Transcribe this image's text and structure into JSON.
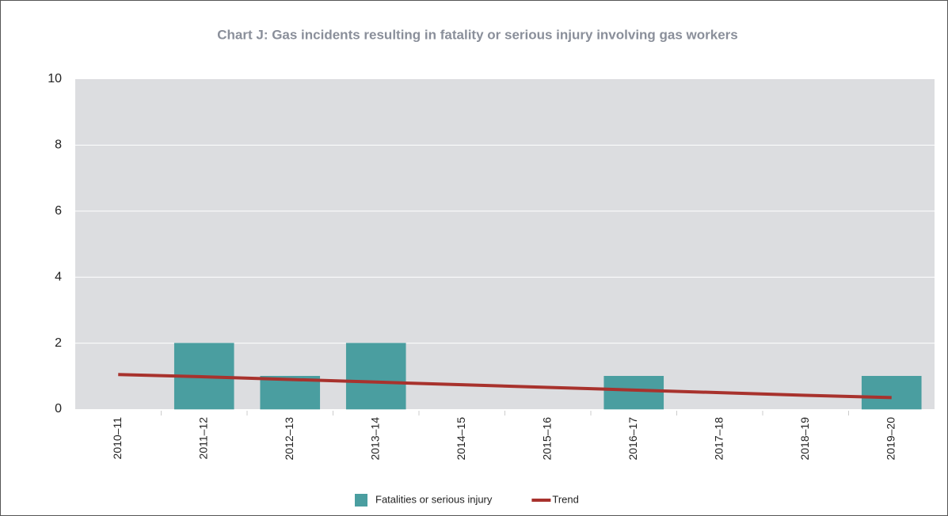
{
  "chart_data": {
    "type": "bar",
    "title": "Chart J: Gas incidents resulting in fatality or serious injury involving gas workers",
    "categories": [
      "2010–11",
      "2011–12",
      "2012–13",
      "2013–14",
      "2014–15",
      "2015–16",
      "2016–17",
      "2017–18",
      "2018–19",
      "2019–20"
    ],
    "series": [
      {
        "name": "Fatalities or serious injury",
        "type": "bar",
        "color": "#4a9ea0",
        "values": [
          0,
          2,
          1,
          2,
          0,
          0,
          1,
          0,
          0,
          1
        ]
      },
      {
        "name": "Trend",
        "type": "line",
        "color": "#a8322d",
        "values": [
          1.05,
          0.98,
          0.9,
          0.82,
          0.74,
          0.66,
          0.58,
          0.5,
          0.42,
          0.35
        ]
      }
    ],
    "ylim": [
      0,
      10
    ],
    "yticks": [
      0,
      2,
      4,
      6,
      8,
      10
    ],
    "grid": true,
    "legend": "bottom"
  }
}
